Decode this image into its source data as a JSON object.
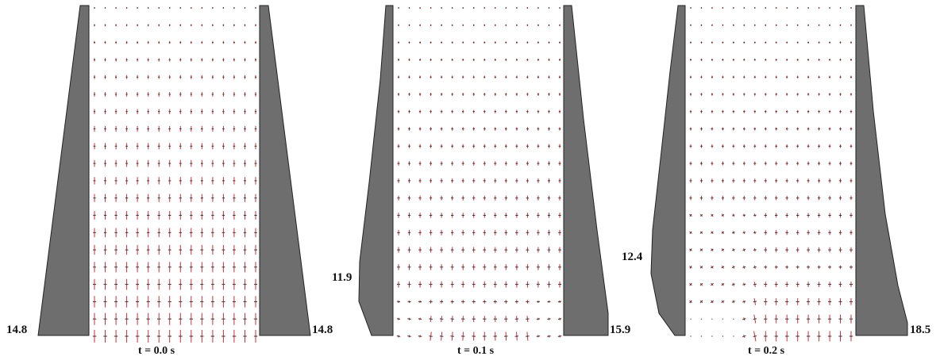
{
  "panels": [
    {
      "caption": "t = 0.0 s",
      "left_value": "14.8",
      "right_value": "14.8"
    },
    {
      "caption": "t = 0.1 s",
      "left_value": "11.9",
      "right_value": "15.9"
    },
    {
      "caption": "t = 0.2 s",
      "left_value": "12.4",
      "right_value": "18.5"
    }
  ],
  "colors": {
    "wall": "#6e6e6e",
    "wall_edge": "#222222",
    "vector": "#c8323c",
    "vector_dark": "#333333",
    "background": "#ffffff"
  }
}
